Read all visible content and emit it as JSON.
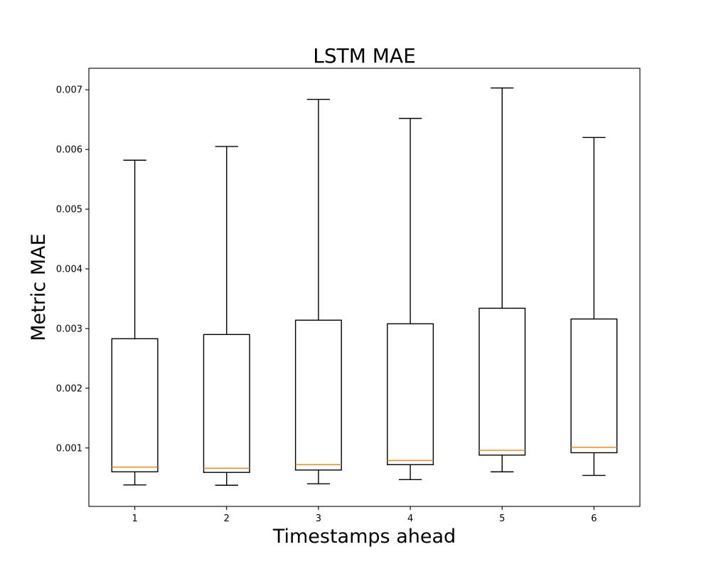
{
  "chart_data": {
    "type": "box",
    "title": "LSTM MAE",
    "xlabel": "Timestamps ahead",
    "ylabel": "Metric MAE",
    "categories": [
      "1",
      "2",
      "3",
      "4",
      "5",
      "6"
    ],
    "ylim": [
      2.05e-05,
      0.00736
    ],
    "yticks": [
      0.001,
      0.002,
      0.003,
      0.004,
      0.005,
      0.006,
      0.007
    ],
    "ytick_labels": [
      "0.001",
      "0.002",
      "0.003",
      "0.004",
      "0.005",
      "0.006",
      "0.007"
    ],
    "boxes": [
      {
        "label": "1",
        "whisker_low": 0.00038,
        "q1": 0.0006,
        "median": 0.00068,
        "q3": 0.00283,
        "whisker_high": 0.00582
      },
      {
        "label": "2",
        "whisker_low": 0.000375,
        "q1": 0.00059,
        "median": 0.00066,
        "q3": 0.0029,
        "whisker_high": 0.00605
      },
      {
        "label": "3",
        "whisker_low": 0.0004,
        "q1": 0.00063,
        "median": 0.00072,
        "q3": 0.00314,
        "whisker_high": 0.00684
      },
      {
        "label": "4",
        "whisker_low": 0.00047,
        "q1": 0.00072,
        "median": 0.00079,
        "q3": 0.00308,
        "whisker_high": 0.00652
      },
      {
        "label": "5",
        "whisker_low": 0.0006,
        "q1": 0.00088,
        "median": 0.00096,
        "q3": 0.00334,
        "whisker_high": 0.00703
      },
      {
        "label": "6",
        "whisker_low": 0.00054,
        "q1": 0.00092,
        "median": 0.00101,
        "q3": 0.00316,
        "whisker_high": 0.0062
      }
    ],
    "grid": false,
    "colors": {
      "box": "#000000",
      "median": "#ff7f0e",
      "axes": "#000000",
      "background": "#ffffff"
    }
  }
}
